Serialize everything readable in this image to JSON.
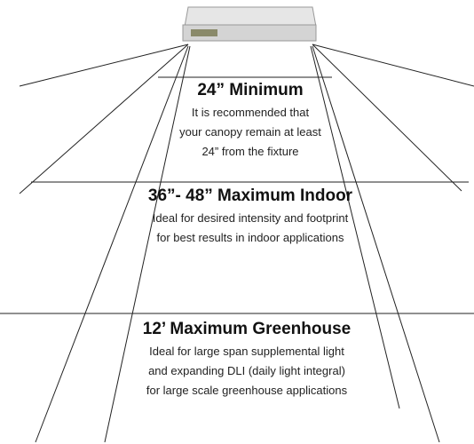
{
  "sections": [
    {
      "title": "24” Minimum",
      "lines": [
        "It is recommended that",
        "your canopy remain at least",
        "24” from the fixture"
      ]
    },
    {
      "title": "36”- 48” Maximum Indoor",
      "lines": [
        "Ideal for desired intensity and footprint",
        "for best results in indoor applications"
      ]
    },
    {
      "title": "12’ Maximum Greenhouse",
      "lines": [
        "Ideal for large span supplemental light",
        "and expanding DLI (daily light integral)",
        "for large scale greenhouse applications"
      ]
    }
  ]
}
